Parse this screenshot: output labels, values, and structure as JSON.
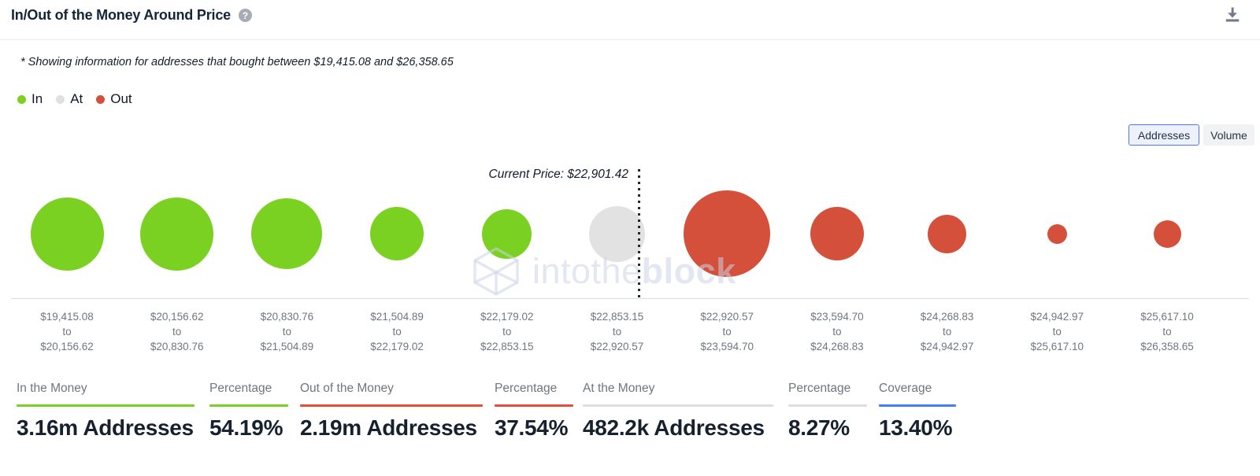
{
  "header": {
    "title": "In/Out of the Money Around Price",
    "help_icon": "question-mark",
    "download_icon": "download"
  },
  "note": "* Showing information for addresses that bought between $19,415.08 and $26,358.65",
  "legend": {
    "items": [
      {
        "label": "In",
        "color": "#7bd121"
      },
      {
        "label": "At",
        "color": "#e0e0e0"
      },
      {
        "label": "Out",
        "color": "#d5503a"
      }
    ]
  },
  "view_toggle": {
    "options": [
      {
        "label": "Addresses",
        "selected": true
      },
      {
        "label": "Volume",
        "selected": false
      }
    ],
    "selected": "Addresses"
  },
  "chart_data": {
    "type": "bubble",
    "title": "In/Out of the Money Around Price",
    "current_price": 22901.42,
    "current_price_label": "Current Price: $22,901.42",
    "range_separator": "to",
    "status_colors": {
      "in": "#7bd121",
      "at": "#e2e2e2",
      "out": "#d5503a"
    },
    "buckets": [
      {
        "from": "$19,415.08",
        "to": "$20,156.62",
        "status": "in",
        "size": 93
      },
      {
        "from": "$20,156.62",
        "to": "$20,830.76",
        "status": "in",
        "size": 93
      },
      {
        "from": "$20,830.76",
        "to": "$21,504.89",
        "status": "in",
        "size": 90
      },
      {
        "from": "$21,504.89",
        "to": "$22,179.02",
        "status": "in",
        "size": 68
      },
      {
        "from": "$22,179.02",
        "to": "$22,853.15",
        "status": "in",
        "size": 63
      },
      {
        "from": "$22,853.15",
        "to": "$22,920.57",
        "status": "at",
        "size": 71
      },
      {
        "from": "$22,920.57",
        "to": "$23,594.70",
        "status": "out",
        "size": 110
      },
      {
        "from": "$23,594.70",
        "to": "$24,268.83",
        "status": "out",
        "size": 68
      },
      {
        "from": "$24,268.83",
        "to": "$24,942.97",
        "status": "out",
        "size": 49
      },
      {
        "from": "$24,942.97",
        "to": "$25,617.10",
        "status": "out",
        "size": 25
      },
      {
        "from": "$25,617.10",
        "to": "$26,358.65",
        "status": "out",
        "size": 35
      }
    ]
  },
  "stats": [
    {
      "label": "In the Money",
      "value": "3.16m Addresses",
      "underline_color": "#7bd121"
    },
    {
      "label": "Percentage",
      "value": "54.19%",
      "underline_color": "#7bd121"
    },
    {
      "label": "Out of the Money",
      "value": "2.19m Addresses",
      "underline_color": "#e1503a"
    },
    {
      "label": "Percentage",
      "value": "37.54%",
      "underline_color": "#e1503a"
    },
    {
      "label": "At the Money",
      "value": "482.2k Addresses",
      "underline_color": "#dcdee2"
    },
    {
      "label": "Percentage",
      "value": "8.27%",
      "underline_color": "#dcdee2"
    },
    {
      "label": "Coverage",
      "value": "13.40%",
      "underline_color": "#437ef7"
    }
  ],
  "watermark": {
    "part1": "intothe",
    "part2": "block"
  }
}
